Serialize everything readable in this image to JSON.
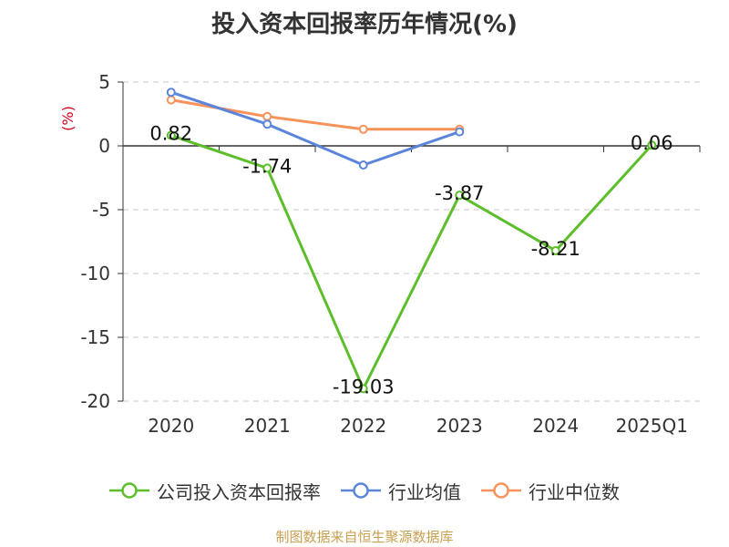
{
  "title": "投入资本回报率历年情况(%)",
  "source": "制图数据来自恒生聚源数据库",
  "colors": {
    "company": "#5CBE2A",
    "industry_mean": "#5B85DB",
    "industry_median": "#F7935A",
    "unit_label": "#D0021B",
    "grid": "#C8C8C8",
    "axis": "#333333"
  },
  "chart_data": {
    "type": "line",
    "title": "投入资本回报率历年情况(%)",
    "ylabel": "(%)",
    "xlabel": "",
    "categories": [
      "2020",
      "2021",
      "2022",
      "2023",
      "2024",
      "2025Q1"
    ],
    "ylim": [
      -20,
      5
    ],
    "yticks": [
      5,
      0,
      -5,
      -10,
      -15,
      -20
    ],
    "grid": "horizontal-dashed",
    "legend": "bottom",
    "series": [
      {
        "name": "公司投入资本回报率",
        "color": "#5CBE2A",
        "values": [
          0.82,
          -1.74,
          -19.03,
          -3.87,
          -8.21,
          0.06
        ],
        "labels": [
          "0.82",
          "-1.74",
          "-19.03",
          "-3.87",
          "-8.21",
          "0.06"
        ]
      },
      {
        "name": "行业均值",
        "color": "#5B85DB",
        "values": [
          4.2,
          1.7,
          -1.5,
          1.1,
          null,
          null
        ]
      },
      {
        "name": "行业中位数",
        "color": "#F7935A",
        "values": [
          3.6,
          2.3,
          1.3,
          1.3,
          null,
          null
        ]
      }
    ]
  }
}
